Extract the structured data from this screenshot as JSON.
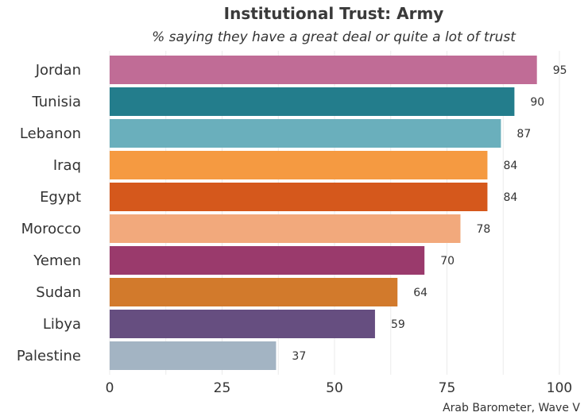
{
  "chart_data": {
    "type": "bar",
    "orientation": "horizontal",
    "title": "Institutional Trust: Army",
    "subtitle": "% saying they have a great deal or quite a lot of trust",
    "caption": "Arab Barometer, Wave V",
    "xlim": [
      0,
      100
    ],
    "ticks": [
      0,
      25,
      50,
      75,
      100
    ],
    "grid": true,
    "categories": [
      "Jordan",
      "Tunisia",
      "Lebanon",
      "Iraq",
      "Egypt",
      "Morocco",
      "Yemen",
      "Sudan",
      "Libya",
      "Palestine"
    ],
    "values": [
      95,
      90,
      87,
      84,
      84,
      78,
      70,
      64,
      59,
      37
    ],
    "colors": [
      "#c06c96",
      "#237d8c",
      "#6aafbc",
      "#f59a41",
      "#d5581c",
      "#f2a97c",
      "#9a3a6c",
      "#d27a2c",
      "#664e80",
      "#a3b4c3"
    ]
  }
}
